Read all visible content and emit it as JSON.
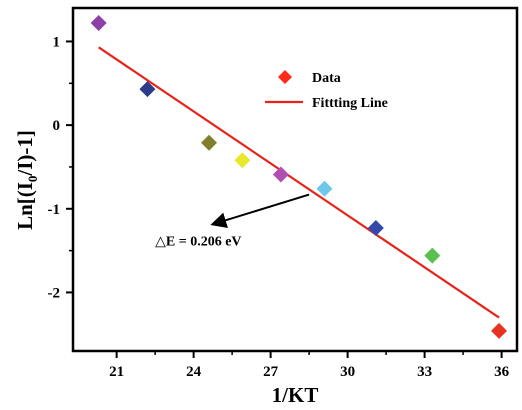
{
  "chart_data": {
    "type": "scatter",
    "xlabel": "1/KT",
    "ylabel": {
      "pre": "Ln[(I",
      "sub": "0",
      "post": "/I)-1]"
    },
    "xlim": [
      19.3,
      36.6
    ],
    "ylim": [
      -2.7,
      1.4
    ],
    "xticks": [
      21,
      24,
      27,
      30,
      33,
      36
    ],
    "yticks": [
      1,
      0,
      -1,
      -2
    ],
    "grid": false,
    "legend_position": "top-right",
    "legend": [
      {
        "label": "Data",
        "marker": "diamond",
        "color": "#ff2a1a"
      },
      {
        "label": "Fittting Line",
        "marker": "line",
        "color": "#e8241a"
      }
    ],
    "points": [
      {
        "x": 20.3,
        "y": 1.22,
        "color": "#8e3fa8"
      },
      {
        "x": 22.2,
        "y": 0.43,
        "color": "#2e3a8c"
      },
      {
        "x": 24.6,
        "y": -0.21,
        "color": "#7f7f2c"
      },
      {
        "x": 25.9,
        "y": -0.42,
        "color": "#e8e82c"
      },
      {
        "x": 27.4,
        "y": -0.59,
        "color": "#b04fb0"
      },
      {
        "x": 29.1,
        "y": -0.76,
        "color": "#6ec8ea"
      },
      {
        "x": 31.1,
        "y": -1.23,
        "color": "#3348a8"
      },
      {
        "x": 33.3,
        "y": -1.56,
        "color": "#5cc04e"
      },
      {
        "x": 35.9,
        "y": -2.46,
        "color": "#e83222"
      }
    ],
    "fit_line": {
      "label": "Fittting Line",
      "color": "#e8241a",
      "x": [
        20.3,
        35.9
      ],
      "y": [
        0.93,
        -2.3
      ]
    },
    "annotation": {
      "text": "△E = 0.206 eV",
      "arrow_color": "#000000",
      "arrow_from": {
        "x": 28.5,
        "y": -0.83
      },
      "arrow_to": {
        "x": 24.8,
        "y": -1.18
      },
      "text_anchor": {
        "x": 22.5,
        "y": -1.44
      }
    }
  }
}
